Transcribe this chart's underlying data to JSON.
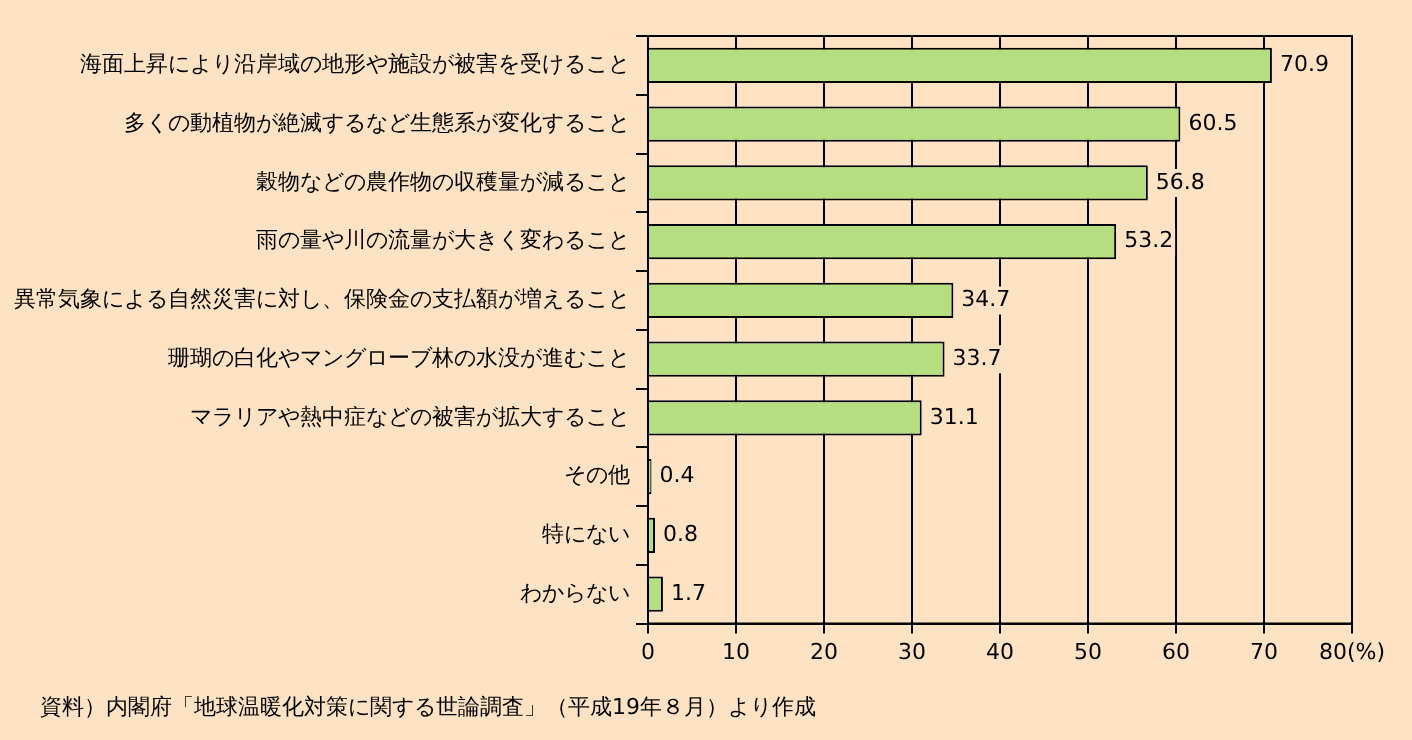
{
  "chart_data": {
    "type": "bar",
    "orientation": "horizontal",
    "categories": [
      "海面上昇により沿岸域の地形や施設が被害を受けること",
      "多くの動植物が絶滅するなど生態系が変化すること",
      "穀物などの農作物の収穫量が減ること",
      "雨の量や川の流量が大きく変わること",
      "異常気象による自然災害に対し、保険金の支払額が増えること",
      "珊瑚の白化やマングローブ林の水没が進むこと",
      "マラリアや熱中症などの被害が拡大すること",
      "その他",
      "特にない",
      "わからない"
    ],
    "values": [
      70.9,
      60.5,
      56.8,
      53.2,
      34.7,
      33.7,
      31.1,
      0.4,
      0.8,
      1.7
    ],
    "color": "#b5de80",
    "xlim": [
      0,
      80
    ],
    "xticks": [
      0,
      10,
      20,
      30,
      40,
      50,
      60,
      70,
      {
        "value": 80,
        "label": "80(%)"
      }
    ],
    "grid": "x",
    "legend": false,
    "data_labels": true,
    "annotations": [
      "資料）内閣府「地球温暖化対策に関する世論調査」（平成19年８月）より作成"
    ]
  }
}
